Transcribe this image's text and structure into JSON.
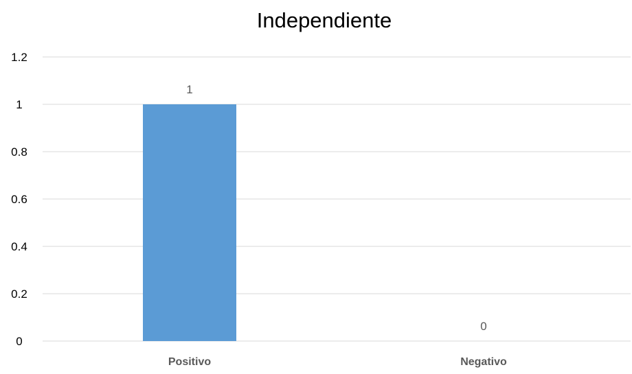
{
  "chart_data": {
    "type": "bar",
    "title": "Independiente",
    "categories": [
      "Positivo",
      "Negativo"
    ],
    "values": [
      1,
      0
    ],
    "data_labels": [
      "1",
      "0"
    ],
    "xlabel": "",
    "ylabel": "",
    "ylim": [
      0,
      1.2
    ],
    "yticks": [
      0,
      0.2,
      0.4,
      0.6,
      0.8,
      1,
      1.2
    ],
    "ytick_labels": [
      "0",
      "0.2",
      "0.4",
      "0.6",
      "0.8",
      "1",
      "1.2"
    ],
    "grid": true,
    "legend": "none",
    "bar_color": "#5B9BD5",
    "grid_color": "#D9D9D9",
    "text_color": "#595959",
    "title_color": "#000000"
  }
}
